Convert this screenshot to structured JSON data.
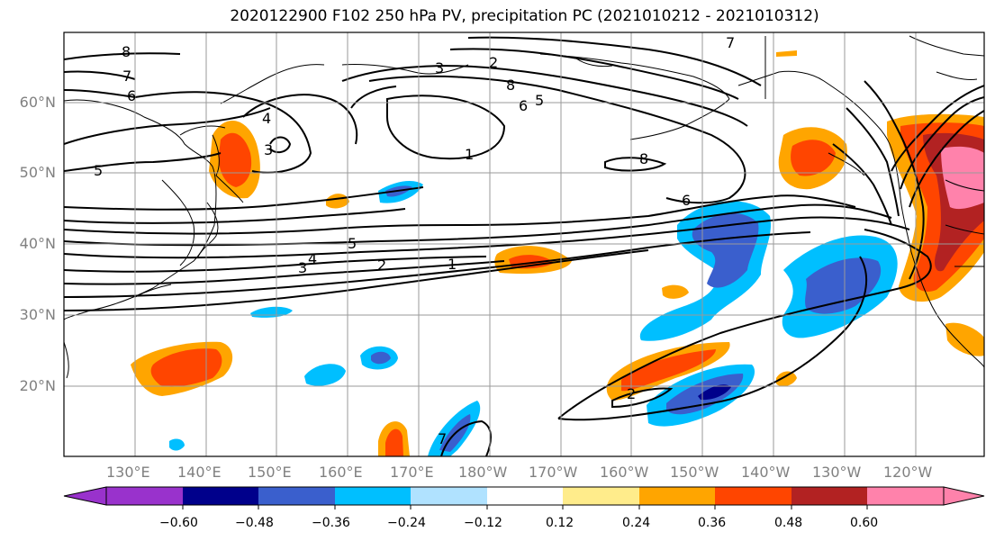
{
  "title": "2020122900 F102 250 hPa PV, precipitation PC (2021010212 - 2021010312)",
  "map": {
    "lat_labels": [
      "60°N",
      "50°N",
      "40°N",
      "30°N",
      "20°N"
    ],
    "lon_labels": [
      "130°E",
      "140°E",
      "150°E",
      "160°E",
      "170°E",
      "180°W",
      "170°W",
      "160°W",
      "150°W",
      "140°W",
      "130°W",
      "120°W"
    ],
    "pv_contour_labels": [
      "8",
      "7",
      "6",
      "5",
      "4",
      "3",
      "2",
      "1",
      "7",
      "8",
      "6",
      "5",
      "4",
      "3",
      "2",
      "1",
      "3",
      "2",
      "7",
      "5",
      "6",
      "8"
    ]
  },
  "colorbar": {
    "ticks": [
      "−0.60",
      "−0.48",
      "−0.36",
      "−0.24",
      "−0.12",
      "0.12",
      "0.24",
      "0.36",
      "0.48",
      "0.60"
    ],
    "colors": [
      "#9932cc",
      "#00008b",
      "#3a5fcd",
      "#00bfff",
      "#b0e2ff",
      "#ffffff",
      "#ffec8b",
      "#ffa500",
      "#ff4500",
      "#b22222",
      "#ff82ab"
    ]
  }
}
